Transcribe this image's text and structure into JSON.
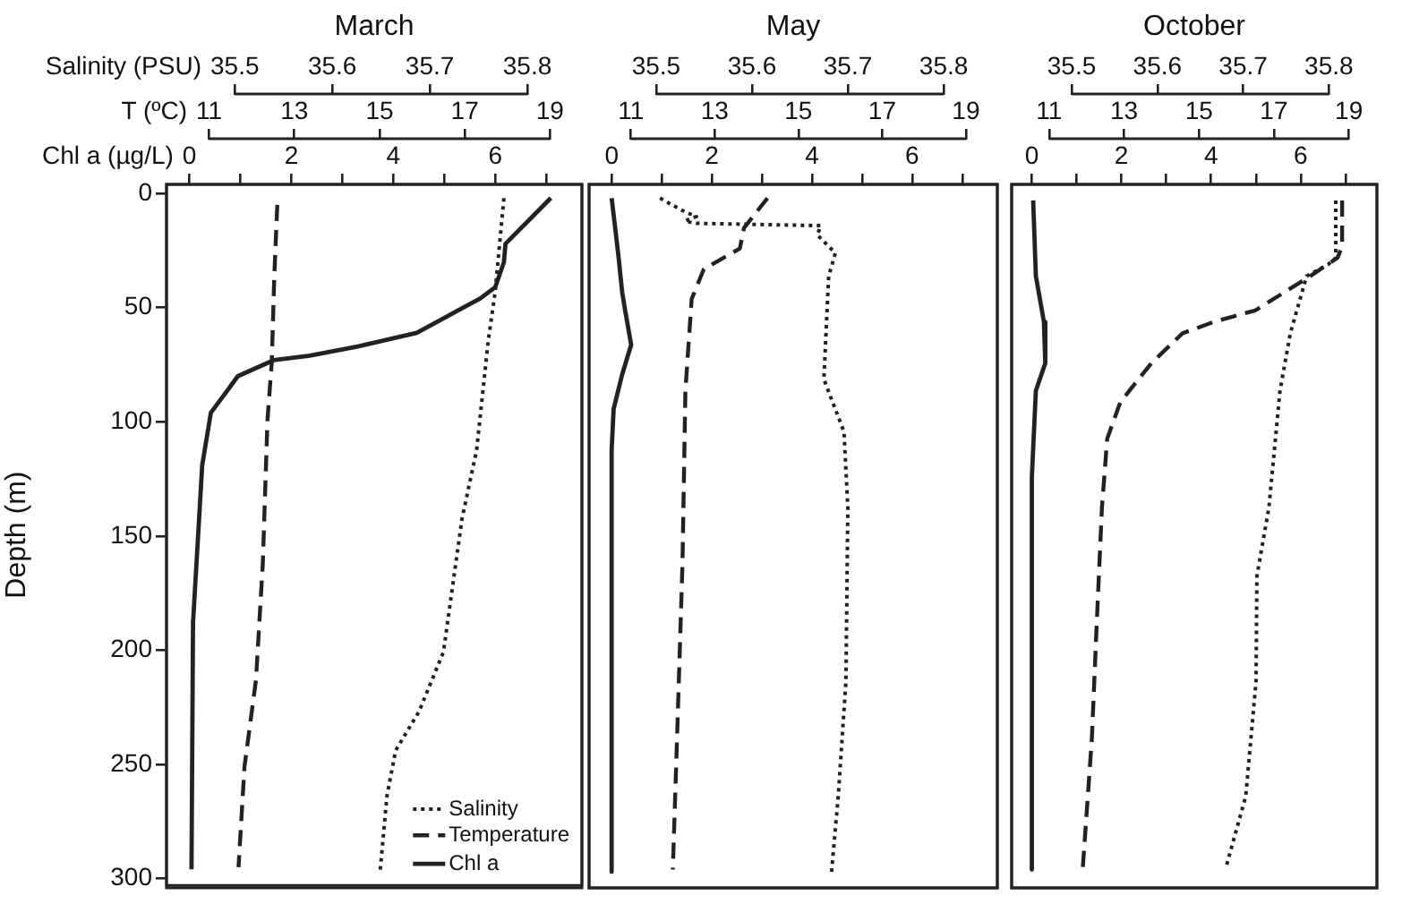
{
  "chart_data": [
    {
      "type": "line",
      "title": "March",
      "xlabel": "Salinity (PSU)",
      "xlim": [
        35.43,
        35.856
      ],
      "xticks": [
        35.5,
        35.6,
        35.7,
        35.8
      ],
      "ylim": [
        303,
        -4
      ],
      "tick_labels": "x",
      "legend": "bottom right",
      "series": [
        {
          "name": "Salinity",
          "color": "#222222",
          "line_style": "dotted",
          "x": [
            35.776,
            35.767,
            35.76,
            35.748,
            35.733,
            35.714,
            35.689,
            35.665,
            35.656,
            35.649
          ],
          "values": [
            2,
            43,
            64,
            112,
            142,
            200,
            226,
            243,
            263,
            296
          ]
        }
      ]
    },
    {
      "type": "line",
      "xlabel": "Chl a (µg/L)",
      "x2label": "T (ºC)",
      "ylabel": "Depth (m)",
      "xlim": [
        -0.45,
        7.7
      ],
      "xticks": [
        0,
        {
          "value": 1,
          "label": null
        },
        2,
        {
          "value": 3,
          "label": null
        },
        4,
        {
          "value": 5,
          "label": null
        },
        6,
        {
          "value": 7,
          "label": null
        }
      ],
      "x2lim": [
        10,
        19.75
      ],
      "x2ticks": [
        11,
        13,
        15,
        17,
        19
      ],
      "ylim": [
        303,
        -4
      ],
      "yticks": [
        0,
        50,
        100,
        150,
        200,
        250,
        300
      ],
      "legend": "bottom right",
      "series": [
        {
          "name": "Temperature",
          "color": "#222222",
          "axis": "x2",
          "line_style": "dashed",
          "x": [
            12.6,
            12.53,
            12.47,
            12.37,
            12.26,
            12.1,
            11.83,
            11.69
          ],
          "values": [
            5,
            36,
            74,
            99,
            162,
            213,
            251,
            295
          ]
        },
        {
          "name": "Chl a",
          "color": "#222222",
          "line_style": "solid",
          "x": [
            7.09,
            6.2,
            6.17,
            6.0,
            5.7,
            4.46,
            3.3,
            2.36,
            1.65,
            0.95,
            0.42,
            0.25,
            0.07,
            0.04
          ],
          "values": [
            2,
            22,
            30,
            41,
            46,
            61,
            67,
            71,
            73,
            80,
            96,
            119,
            188,
            296
          ]
        }
      ]
    },
    {
      "type": "line",
      "title": "May",
      "xlim": [
        35.43,
        35.856
      ],
      "xticks": [
        35.5,
        35.6,
        35.7,
        35.8
      ],
      "ylim": [
        303,
        -4
      ],
      "tick_labels": "x",
      "series": [
        {
          "color": "#222222",
          "line_style": "dotted",
          "x": [
            35.504,
            35.53,
            35.542,
            35.53,
            35.542,
            35.672,
            35.668,
            35.687,
            35.68,
            35.675,
            35.696,
            35.7,
            35.698,
            35.69,
            35.683
          ],
          "values": [
            2,
            8,
            10,
            12,
            13,
            14,
            18,
            26,
            36,
            81,
            104,
            137,
            213,
            263,
            296
          ]
        }
      ]
    },
    {
      "type": "line",
      "xlim": [
        -0.45,
        7.7
      ],
      "xticks": [
        0,
        {
          "value": 1,
          "label": null
        },
        2,
        {
          "value": 3,
          "label": null
        },
        4,
        {
          "value": 5,
          "label": null
        },
        6,
        {
          "value": 7,
          "label": null
        }
      ],
      "x2lim": [
        10,
        19.75
      ],
      "x2ticks": [
        11,
        13,
        15,
        17,
        19
      ],
      "ylim": [
        303,
        -4
      ],
      "tick_labels": "x",
      "series": [
        {
          "color": "#222222",
          "axis": "x2",
          "line_style": "dashed",
          "x": [
            14.26,
            13.7,
            13.6,
            12.74,
            12.45,
            12.3,
            12.23,
            12.1,
            12.0
          ],
          "values": [
            2,
            15,
            24,
            33,
            46,
            86,
            162,
            238,
            295
          ]
        },
        {
          "color": "#222222",
          "line_style": "solid",
          "x": [
            0,
            0.06,
            0.14,
            0.21,
            0.27,
            0.39,
            0.21,
            0.04,
            0,
            0
          ],
          "values": [
            2,
            13,
            28,
            43,
            51,
            66,
            79,
            94,
            112,
            296
          ]
        }
      ]
    },
    {
      "type": "line",
      "title": "October",
      "xlim": [
        35.43,
        35.856
      ],
      "xticks": [
        35.5,
        35.6,
        35.7,
        35.8
      ],
      "ylim": [
        303,
        -4
      ],
      "tick_labels": "x",
      "series": [
        {
          "color": "#222222",
          "line_style": "dotted",
          "x": [
            35.808,
            35.808,
            35.799,
            35.774,
            35.755,
            35.743,
            35.73,
            35.716,
            35.715,
            35.703,
            35.68
          ],
          "values": [
            3,
            28,
            31,
            36,
            61,
            86,
            137,
            167,
            213,
            263,
            294
          ]
        }
      ]
    },
    {
      "type": "line",
      "xlim": [
        -0.45,
        7.7
      ],
      "xticks": [
        0,
        {
          "value": 1,
          "label": null
        },
        2,
        {
          "value": 3,
          "label": null
        },
        4,
        {
          "value": 5,
          "label": null
        },
        6,
        {
          "value": 7,
          "label": null
        }
      ],
      "x2lim": [
        10,
        19.75
      ],
      "x2ticks": [
        11,
        13,
        15,
        17,
        19
      ],
      "ylim": [
        303,
        -4
      ],
      "tick_labels": "x",
      "series": [
        {
          "color": "#222222",
          "axis": "x2",
          "line_style": "dashed",
          "x": [
            18.82,
            18.82,
            18.7,
            17.88,
            16.5,
            15.4,
            14.56,
            13.73,
            12.9,
            12.55,
            12.41,
            12.27,
            12.14,
            11.9
          ],
          "values": [
            3,
            23,
            28,
            37,
            51,
            56,
            61,
            74,
            91,
            107,
            137,
            188,
            238,
            294
          ]
        },
        {
          "color": "#222222",
          "line_style": "solid",
          "x": [
            0.03,
            0.09,
            0.27,
            0.3,
            0.09,
            0,
            0
          ],
          "values": [
            3,
            36,
            56,
            74,
            86,
            124,
            295
          ]
        }
      ]
    }
  ]
}
